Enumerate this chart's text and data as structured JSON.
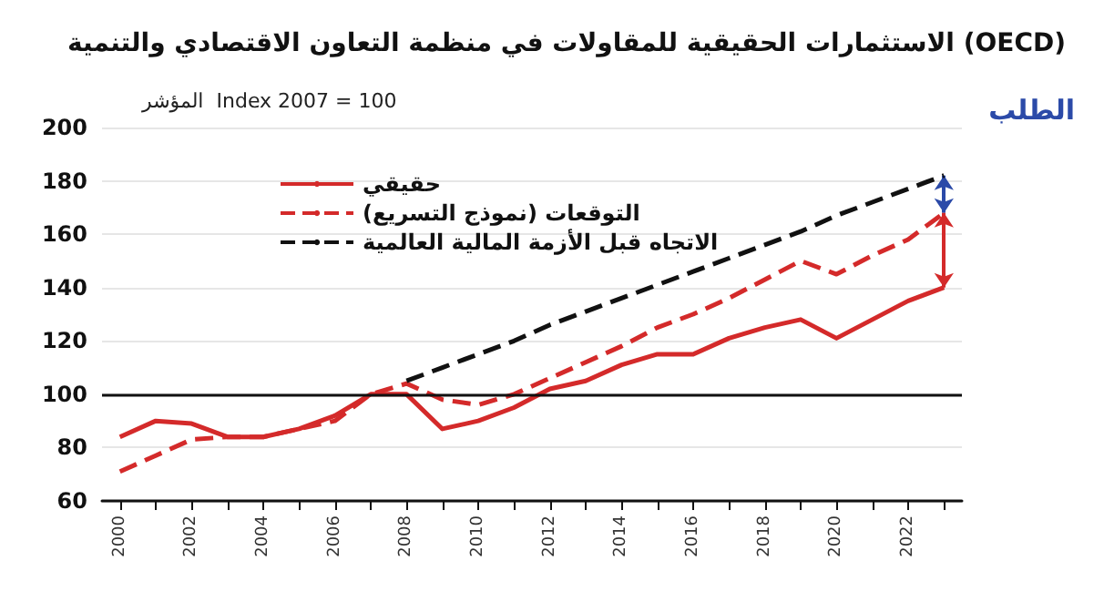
{
  "chart_data": {
    "type": "line",
    "title": "الاستثمارات الحقيقية للمقاولات في منظمة التعاون الاقتصادي والتنمية (OECD)",
    "ylabel": "المؤشر  Index 2007 = 100",
    "categories": [
      "2000",
      null,
      "2002",
      null,
      "2004",
      null,
      "2006",
      null,
      "2008",
      null,
      "2010",
      null,
      "2012",
      null,
      "2014",
      null,
      "2016",
      null,
      "2018",
      null,
      "2020",
      null,
      "2022",
      null
    ],
    "series": [
      {
        "name": "حقيقي",
        "color": "#d42a2a",
        "line_style": "solid",
        "values": [
          84,
          90,
          89,
          84,
          84,
          87,
          92,
          100,
          100,
          87,
          90,
          95,
          102,
          105,
          111,
          115,
          115,
          121,
          125,
          128,
          121,
          128,
          135,
          140
        ]
      },
      {
        "name": "التوقعات (نموذج التسريع)",
        "color": "#d42a2a",
        "line_style": "dashed",
        "values": [
          71,
          77,
          83,
          84,
          84,
          87,
          90,
          100,
          104,
          98,
          96,
          100,
          106,
          112,
          118,
          125,
          130,
          136,
          143,
          150,
          145,
          152,
          158,
          168
        ]
      },
      {
        "name": "الاتجاه قبل الأزمة المالية العالمية",
        "color": "#111111",
        "line_style": "dashed",
        "values": [
          null,
          null,
          null,
          null,
          null,
          null,
          null,
          null,
          105,
          110,
          115,
          120,
          126,
          131,
          136,
          141,
          146,
          151,
          156,
          161,
          167,
          172,
          177,
          182
        ]
      }
    ],
    "ylim": [
      60,
      200
    ],
    "yticks": [
      60,
      80,
      100,
      120,
      140,
      160,
      180,
      200
    ],
    "grid": "y",
    "legend": "top left",
    "marker": "none",
    "ref_lines": [
      {
        "axis": "y",
        "value": 100,
        "label": null,
        "color": "#111111",
        "line_style": "solid"
      }
    ],
    "annotations": [
      "الطلب"
    ]
  }
}
